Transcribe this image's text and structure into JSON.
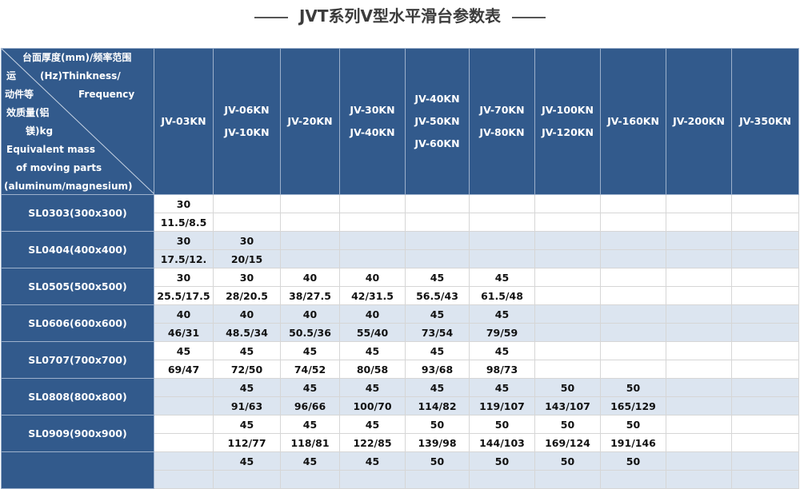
{
  "title": "JVT系列V型水平滑台参数表",
  "corner": {
    "top": [
      "台面厚度(mm)/频率范围",
      "(Hz)Thinkness/",
      "Frequency"
    ],
    "bottom": [
      "运",
      "动件等",
      "效质量(铝",
      "镁)kg",
      "Equivalent mass",
      "of moving parts",
      "(aluminum/magnesium)"
    ]
  },
  "columns": [
    [
      "JV-03KN"
    ],
    [
      "JV-06KN",
      "JV-10KN"
    ],
    [
      "JV-20KN"
    ],
    [
      "JV-30KN",
      "JV-40KN"
    ],
    [
      "JV-40KN",
      "JV-50KN",
      "JV-60KN"
    ],
    [
      "JV-70KN",
      "JV-80KN"
    ],
    [
      "JV-100KN",
      "JV-120KN"
    ],
    [
      "JV-160KN"
    ],
    [
      "JV-200KN"
    ],
    [
      "JV-350KN"
    ]
  ],
  "rows": [
    {
      "label": "SL0303(300x300)",
      "thickness": [
        "30",
        "",
        "",
        "",
        "",
        "",
        "",
        "",
        "",
        ""
      ],
      "mass": [
        "11.5/8.5",
        "",
        "",
        "",
        "",
        "",
        "",
        "",
        "",
        ""
      ]
    },
    {
      "label": "SL0404(400x400)",
      "thickness": [
        "30",
        "30",
        "",
        "",
        "",
        "",
        "",
        "",
        "",
        ""
      ],
      "mass": [
        "17.5/12.",
        "20/15",
        "",
        "",
        "",
        "",
        "",
        "",
        "",
        ""
      ]
    },
    {
      "label": "SL0505(500x500)",
      "thickness": [
        "30",
        "30",
        "40",
        "40",
        "45",
        "45",
        "",
        "",
        "",
        ""
      ],
      "mass": [
        "25.5/17.5",
        "28/20.5",
        "38/27.5",
        "42/31.5",
        "56.5/43",
        "61.5/48",
        "",
        "",
        "",
        ""
      ]
    },
    {
      "label": "SL0606(600x600)",
      "thickness": [
        "40",
        "40",
        "40",
        "40",
        "45",
        "45",
        "",
        "",
        "",
        ""
      ],
      "mass": [
        "46/31",
        "48.5/34",
        "50.5/36",
        "55/40",
        "73/54",
        "79/59",
        "",
        "",
        "",
        ""
      ]
    },
    {
      "label": "SL0707(700x700)",
      "thickness": [
        "45",
        "45",
        "45",
        "45",
        "45",
        "45",
        "",
        "",
        "",
        ""
      ],
      "mass": [
        "69/47",
        "72/50",
        "74/52",
        "80/58",
        "93/68",
        "98/73",
        "",
        "",
        "",
        ""
      ]
    },
    {
      "label": "SL0808(800x800)",
      "thickness": [
        "",
        "45",
        "45",
        "45",
        "45",
        "45",
        "50",
        "50",
        "",
        ""
      ],
      "mass": [
        "",
        "91/63",
        "96/66",
        "100/70",
        "114/82",
        "119/107",
        "143/107",
        "165/129",
        "",
        ""
      ]
    },
    {
      "label": "SL0909(900x900)",
      "thickness": [
        "",
        "45",
        "45",
        "45",
        "50",
        "50",
        "50",
        "50",
        "",
        ""
      ],
      "mass": [
        "",
        "112/77",
        "118/81",
        "122/85",
        "139/98",
        "144/103",
        "169/124",
        "191/146",
        "",
        ""
      ]
    },
    {
      "label": "",
      "thickness": [
        "",
        "45",
        "45",
        "45",
        "50",
        "50",
        "50",
        "50",
        "",
        ""
      ],
      "mass": [
        "",
        "",
        "",
        "",
        "",
        "",
        "",
        "",
        "",
        ""
      ]
    }
  ]
}
